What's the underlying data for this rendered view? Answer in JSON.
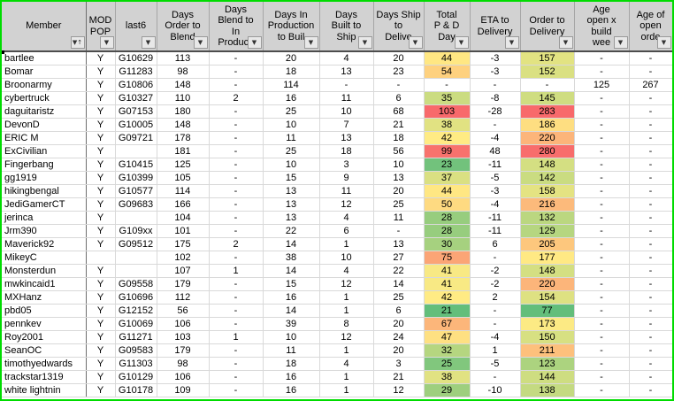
{
  "table": {
    "columns": [
      {
        "key": "member",
        "label": "Member",
        "align": "left",
        "filter": "sort-asc"
      },
      {
        "key": "mod_pop",
        "label": "MOD\nPOP",
        "filter": "dropdown"
      },
      {
        "key": "last6",
        "label": "last6",
        "filter": "dropdown"
      },
      {
        "key": "days_order_to_blend",
        "label": "Days\nOrder to\nBlend",
        "filter": "dropdown"
      },
      {
        "key": "days_blend_to_in_production",
        "label": "Days\nBlend to\nIn\nProducti",
        "filter": "dropdown"
      },
      {
        "key": "days_in_production_to_build",
        "label": "Days In\nProduction\nto Buil",
        "filter": "dropdown"
      },
      {
        "key": "days_built_to_ship",
        "label": "Days\nBuilt to\nShip",
        "filter": "dropdown"
      },
      {
        "key": "days_ship_to_deliver",
        "label": "Days Ship\nto\nDelive",
        "filter": "dropdown"
      },
      {
        "key": "total_p_and_d_days",
        "label": "Total\nP & D\nDay",
        "filter": "dropdown",
        "scale": "total_pd"
      },
      {
        "key": "eta_to_delivery",
        "label": "ETA to\nDelivery",
        "filter": "dropdown"
      },
      {
        "key": "order_to_delivery",
        "label": "Order to\nDelivery",
        "filter": "dropdown",
        "scale": "order_to_delivery"
      },
      {
        "key": "age_open_x_build_weeks",
        "label": "Age\nopen x\nbuild\nwee",
        "filter": "dropdown"
      },
      {
        "key": "age_of_open_orders",
        "label": "Age of\nopen\norde",
        "filter": "dropdown"
      }
    ],
    "rows": [
      [
        "bartlee",
        "Y",
        "G10629",
        "113",
        "-",
        "20",
        "4",
        "20",
        "44",
        "-3",
        "157",
        "-",
        "-"
      ],
      [
        "Bomar",
        "Y",
        "G11283",
        "98",
        "-",
        "18",
        "13",
        "23",
        "54",
        "-3",
        "152",
        "-",
        "-"
      ],
      [
        "Broonarmy",
        "Y",
        "G10806",
        "148",
        "-",
        "114",
        "-",
        "-",
        "-",
        "-",
        "-",
        "125",
        "267"
      ],
      [
        "cybertruck",
        "Y",
        "G10327",
        "110",
        "2",
        "16",
        "11",
        "6",
        "35",
        "-8",
        "145",
        "-",
        "-"
      ],
      [
        "daguitaristz",
        "Y",
        "G07153",
        "180",
        "-",
        "25",
        "10",
        "68",
        "103",
        "-28",
        "283",
        "-",
        "-"
      ],
      [
        "DevonD",
        "Y",
        "G10005",
        "148",
        "-",
        "10",
        "7",
        "21",
        "38",
        "-",
        "186",
        "-",
        "-"
      ],
      [
        "ERIC M",
        "Y",
        "G09721",
        "178",
        "-",
        "11",
        "13",
        "18",
        "42",
        "-4",
        "220",
        "-",
        "-"
      ],
      [
        "ExCivilian",
        "Y",
        "",
        "181",
        "-",
        "25",
        "18",
        "56",
        "99",
        "48",
        "280",
        "-",
        "-"
      ],
      [
        "Fingerbang",
        "Y",
        "G10415",
        "125",
        "-",
        "10",
        "3",
        "10",
        "23",
        "-11",
        "148",
        "-",
        "-"
      ],
      [
        "gg1919",
        "Y",
        "G10399",
        "105",
        "-",
        "15",
        "9",
        "13",
        "37",
        "-5",
        "142",
        "-",
        "-"
      ],
      [
        "hikingbengal",
        "Y",
        "G10577",
        "114",
        "-",
        "13",
        "11",
        "20",
        "44",
        "-3",
        "158",
        "-",
        "-"
      ],
      [
        "JediGamerCT",
        "Y",
        "G09683",
        "166",
        "-",
        "13",
        "12",
        "25",
        "50",
        "-4",
        "216",
        "-",
        "-"
      ],
      [
        "jerinca",
        "Y",
        "",
        "104",
        "-",
        "13",
        "4",
        "11",
        "28",
        "-11",
        "132",
        "-",
        "-"
      ],
      [
        "Jrm390",
        "Y",
        "G109xx",
        "101",
        "-",
        "22",
        "6",
        "-",
        "28",
        "-11",
        "129",
        "-",
        "-"
      ],
      [
        "Maverick92",
        "Y",
        "G09512",
        "175",
        "2",
        "14",
        "1",
        "13",
        "30",
        "6",
        "205",
        "-",
        "-"
      ],
      [
        "MikeyC",
        "",
        "",
        "102",
        "-",
        "38",
        "10",
        "27",
        "75",
        "-",
        "177",
        "-",
        "-"
      ],
      [
        "Monsterdun",
        "Y",
        "",
        "107",
        "1",
        "14",
        "4",
        "22",
        "41",
        "-2",
        "148",
        "-",
        "-"
      ],
      [
        "mwkincaid1",
        "Y",
        "G09558",
        "179",
        "-",
        "15",
        "12",
        "14",
        "41",
        "-2",
        "220",
        "-",
        "-"
      ],
      [
        "MXHanz",
        "Y",
        "G10696",
        "112",
        "-",
        "16",
        "1",
        "25",
        "42",
        "2",
        "154",
        "-",
        "-"
      ],
      [
        "pbd05",
        "Y",
        "G12152",
        "56",
        "-",
        "14",
        "1",
        "6",
        "21",
        "-",
        "77",
        "-",
        "-"
      ],
      [
        "pennkev",
        "Y",
        "G10069",
        "106",
        "-",
        "39",
        "8",
        "20",
        "67",
        "-",
        "173",
        "-",
        "-"
      ],
      [
        "Roy2001",
        "Y",
        "G11271",
        "103",
        "1",
        "10",
        "12",
        "24",
        "47",
        "-4",
        "150",
        "-",
        "-"
      ],
      [
        "SeanOC",
        "Y",
        "G09583",
        "179",
        "-",
        "11",
        "1",
        "20",
        "32",
        "1",
        "211",
        "-",
        "-"
      ],
      [
        "timothyedwards",
        "Y",
        "G11303",
        "98",
        "-",
        "18",
        "4",
        "3",
        "25",
        "-5",
        "123",
        "-",
        "-"
      ],
      [
        "trackstar1319",
        "Y",
        "G10129",
        "106",
        "-",
        "16",
        "1",
        "21",
        "38",
        "-",
        "144",
        "-",
        "-"
      ],
      [
        "white lightnin",
        "Y",
        "G10178",
        "109",
        "-",
        "16",
        "1",
        "12",
        "29",
        "-10",
        "138",
        "-",
        "-"
      ]
    ]
  },
  "color_scales": {
    "total_pd": {
      "min": 21,
      "mid": 42,
      "max": 103,
      "min_color": "#63BE7B",
      "mid_color": "#FFEB84",
      "max_color": "#F8696B"
    },
    "order_to_delivery": {
      "min": 77,
      "mid": 175,
      "max": 283,
      "min_color": "#63BE7B",
      "mid_color": "#FFEB84",
      "max_color": "#F8696B"
    }
  },
  "icons": {
    "filter_dropdown": "▼",
    "sort_ascending_filter": "▼↑"
  },
  "frame": {
    "border_color": "#00DC00",
    "header_bg": "#D2D2D2"
  }
}
